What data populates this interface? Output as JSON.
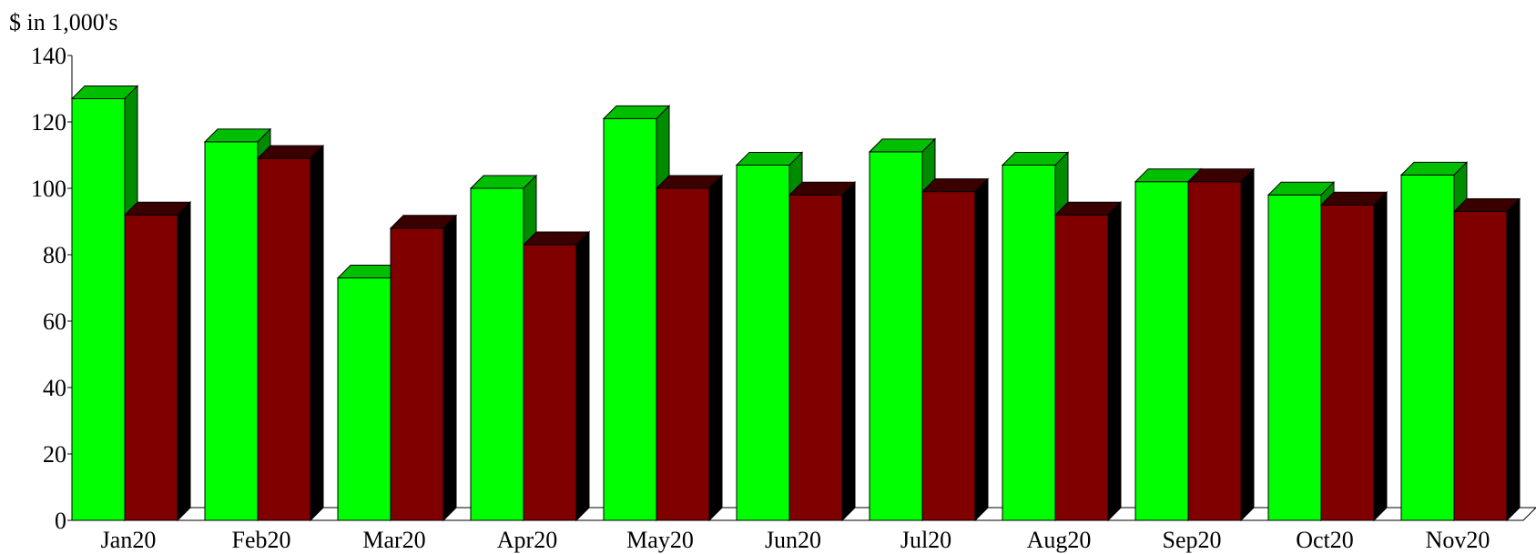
{
  "chart_data": {
    "type": "bar",
    "title": "",
    "ylabel": "$ in 1,000's",
    "xlabel": "",
    "ylim": [
      0,
      140
    ],
    "yticks": [
      0,
      20,
      40,
      60,
      80,
      100,
      120,
      140
    ],
    "grid": false,
    "legend": "none",
    "categories": [
      "Jan20",
      "Feb20",
      "Mar20",
      "Apr20",
      "May20",
      "Jun20",
      "Jul20",
      "Aug20",
      "Sep20",
      "Oct20",
      "Nov20"
    ],
    "series": [
      {
        "color": "#00ff00",
        "values": [
          127,
          114,
          73,
          100,
          121,
          107,
          111,
          107,
          102,
          98,
          104
        ]
      },
      {
        "color": "#800000",
        "values": [
          92,
          109,
          88,
          83,
          100,
          98,
          99,
          92,
          102,
          95,
          93
        ]
      }
    ]
  }
}
